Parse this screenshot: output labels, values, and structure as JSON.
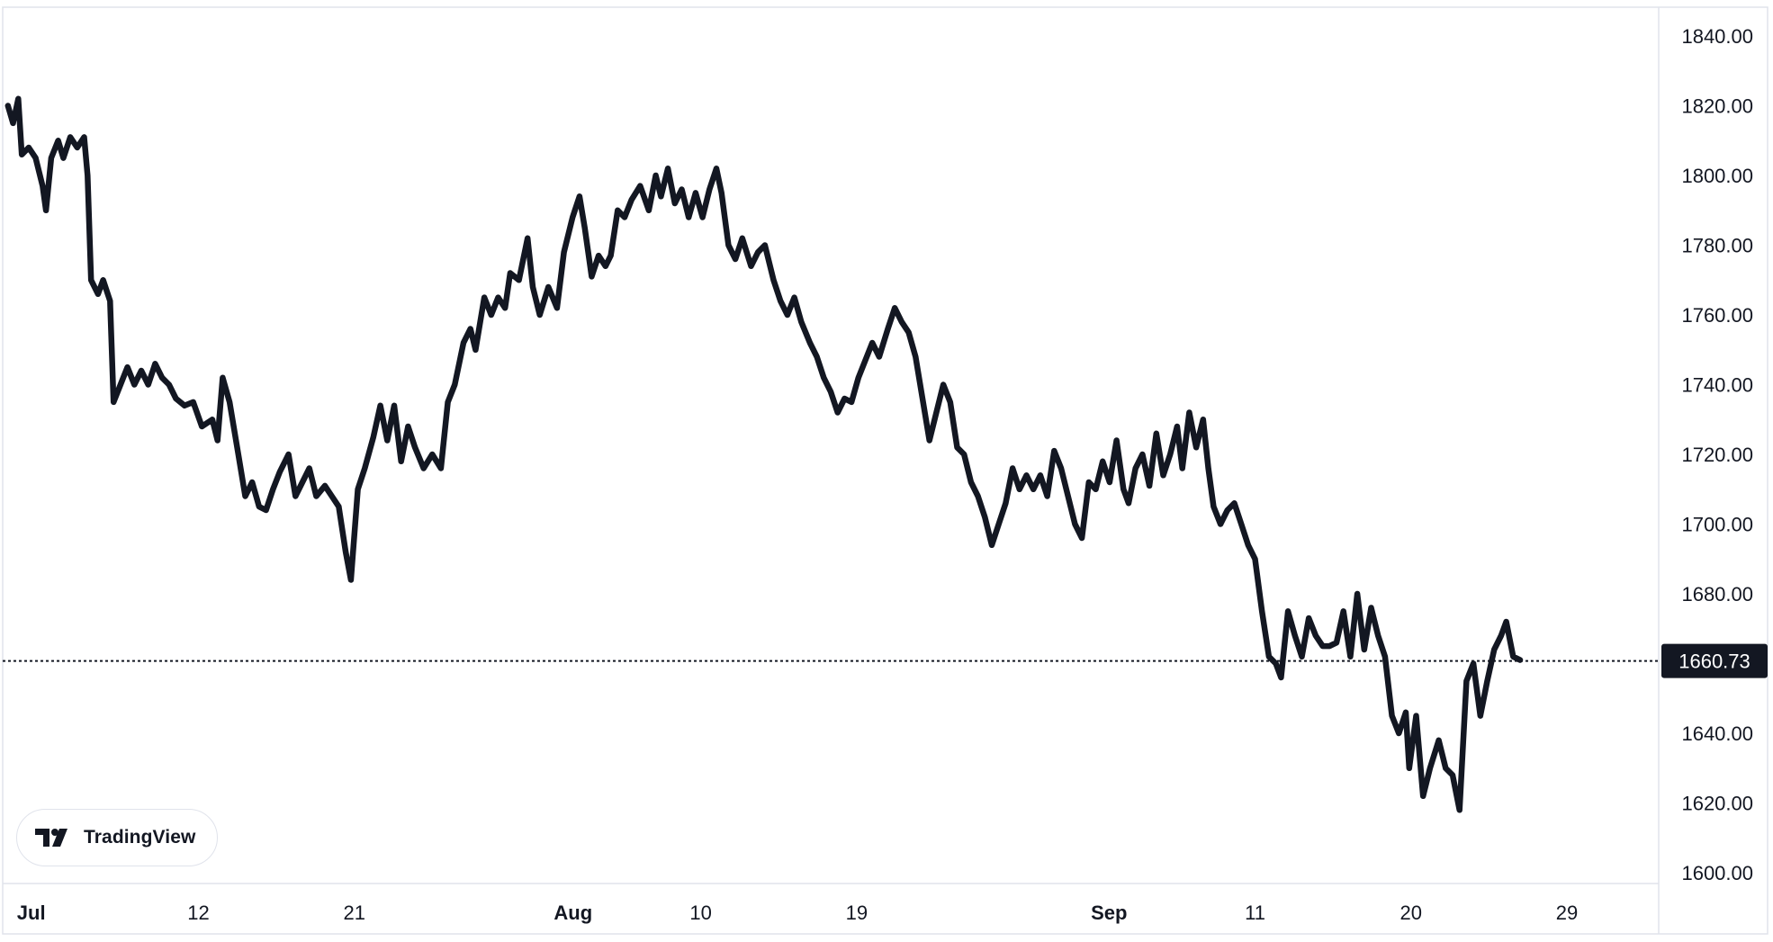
{
  "branding": {
    "logo_text": "TradingView",
    "logo_icon": "tradingview-logo-icon"
  },
  "colors": {
    "line": "#131722",
    "grid_border": "#e0e3eb",
    "price_label_bg": "#131722",
    "price_label_text": "#ffffff",
    "text": "#131722"
  },
  "chart_data": {
    "type": "line",
    "title": "",
    "xlabel": "",
    "ylabel": "",
    "ylim": [
      1600,
      1840
    ],
    "grid": false,
    "y_ticks": [
      "1840.00",
      "1820.00",
      "1800.00",
      "1780.00",
      "1760.00",
      "1740.00",
      "1720.00",
      "1700.00",
      "1680.00",
      "1660.00",
      "1640.00",
      "1620.00",
      "1600.00"
    ],
    "x_ticks": [
      {
        "label": "Jul",
        "day": 0
      },
      {
        "label": "12",
        "day": 11
      },
      {
        "label": "21",
        "day": 20
      },
      {
        "label": "Aug",
        "day": 31
      },
      {
        "label": "10",
        "day": 40
      },
      {
        "label": "19",
        "day": 49
      },
      {
        "label": "Sep",
        "day": 62
      },
      {
        "label": "11",
        "day": 72
      },
      {
        "label": "20",
        "day": 81
      },
      {
        "label": "29",
        "day": 90
      }
    ],
    "x_range": [
      -0.3,
      95.3
    ],
    "current_price": {
      "value": 1660.73,
      "label": "1660.73"
    },
    "series": [
      {
        "values": [
          [
            0,
            1820
          ],
          [
            0.3,
            1815
          ],
          [
            0.6,
            1822
          ],
          [
            0.8,
            1806
          ],
          [
            1.2,
            1808
          ],
          [
            1.6,
            1805
          ],
          [
            2.0,
            1797
          ],
          [
            2.2,
            1790
          ],
          [
            2.5,
            1805
          ],
          [
            2.9,
            1810
          ],
          [
            3.2,
            1805
          ],
          [
            3.6,
            1811
          ],
          [
            4.0,
            1808
          ],
          [
            4.4,
            1811
          ],
          [
            4.6,
            1800
          ],
          [
            4.8,
            1770
          ],
          [
            5.2,
            1766
          ],
          [
            5.5,
            1770
          ],
          [
            5.9,
            1764
          ],
          [
            6.1,
            1735
          ],
          [
            6.5,
            1740
          ],
          [
            6.9,
            1745
          ],
          [
            7.3,
            1740
          ],
          [
            7.7,
            1744
          ],
          [
            8.1,
            1740
          ],
          [
            8.5,
            1746
          ],
          [
            8.9,
            1742
          ],
          [
            9.3,
            1740
          ],
          [
            9.7,
            1736
          ],
          [
            10.2,
            1734
          ],
          [
            10.7,
            1735
          ],
          [
            11.2,
            1728
          ],
          [
            11.8,
            1730
          ],
          [
            12.1,
            1724
          ],
          [
            12.4,
            1742
          ],
          [
            12.8,
            1735
          ],
          [
            13.3,
            1720
          ],
          [
            13.7,
            1708
          ],
          [
            14.1,
            1712
          ],
          [
            14.5,
            1705
          ],
          [
            14.9,
            1704
          ],
          [
            15.3,
            1710
          ],
          [
            15.7,
            1715
          ],
          [
            16.2,
            1720
          ],
          [
            16.6,
            1708
          ],
          [
            17.0,
            1712
          ],
          [
            17.4,
            1716
          ],
          [
            17.8,
            1708
          ],
          [
            18.3,
            1711
          ],
          [
            18.7,
            1708
          ],
          [
            19.1,
            1705
          ],
          [
            19.5,
            1692
          ],
          [
            19.8,
            1684
          ],
          [
            20.2,
            1710
          ],
          [
            20.6,
            1716
          ],
          [
            21.1,
            1725
          ],
          [
            21.5,
            1734
          ],
          [
            21.9,
            1724
          ],
          [
            22.3,
            1734
          ],
          [
            22.7,
            1718
          ],
          [
            23.1,
            1728
          ],
          [
            23.5,
            1722
          ],
          [
            24.0,
            1716
          ],
          [
            24.5,
            1720
          ],
          [
            25.0,
            1716
          ],
          [
            25.4,
            1735
          ],
          [
            25.8,
            1740
          ],
          [
            26.3,
            1752
          ],
          [
            26.7,
            1756
          ],
          [
            27.0,
            1750
          ],
          [
            27.5,
            1765
          ],
          [
            27.9,
            1760
          ],
          [
            28.3,
            1765
          ],
          [
            28.7,
            1762
          ],
          [
            29.0,
            1772
          ],
          [
            29.5,
            1770
          ],
          [
            30.0,
            1782
          ],
          [
            30.3,
            1768
          ],
          [
            30.7,
            1760
          ],
          [
            31.2,
            1768
          ],
          [
            31.7,
            1762
          ],
          [
            32.1,
            1778
          ],
          [
            32.6,
            1788
          ],
          [
            33.0,
            1794
          ],
          [
            33.3,
            1785
          ],
          [
            33.7,
            1771
          ],
          [
            34.1,
            1777
          ],
          [
            34.5,
            1774
          ],
          [
            34.8,
            1777
          ],
          [
            35.2,
            1790
          ],
          [
            35.6,
            1788
          ],
          [
            36.0,
            1793
          ],
          [
            36.5,
            1797
          ],
          [
            37.0,
            1790
          ],
          [
            37.4,
            1800
          ],
          [
            37.7,
            1794
          ],
          [
            38.1,
            1802
          ],
          [
            38.5,
            1792
          ],
          [
            38.9,
            1796
          ],
          [
            39.3,
            1788
          ],
          [
            39.7,
            1795
          ],
          [
            40.1,
            1788
          ],
          [
            40.5,
            1796
          ],
          [
            40.9,
            1802
          ],
          [
            41.2,
            1795
          ],
          [
            41.6,
            1780
          ],
          [
            42.0,
            1776
          ],
          [
            42.4,
            1782
          ],
          [
            42.9,
            1774
          ],
          [
            43.3,
            1778
          ],
          [
            43.7,
            1780
          ],
          [
            44.2,
            1770
          ],
          [
            44.6,
            1764
          ],
          [
            45.0,
            1760
          ],
          [
            45.4,
            1765
          ],
          [
            45.8,
            1758
          ],
          [
            46.3,
            1752
          ],
          [
            46.7,
            1748
          ],
          [
            47.1,
            1742
          ],
          [
            47.5,
            1738
          ],
          [
            47.9,
            1732
          ],
          [
            48.3,
            1736
          ],
          [
            48.7,
            1735
          ],
          [
            49.1,
            1742
          ],
          [
            49.5,
            1747
          ],
          [
            49.9,
            1752
          ],
          [
            50.3,
            1748
          ],
          [
            50.8,
            1756
          ],
          [
            51.2,
            1762
          ],
          [
            51.6,
            1758
          ],
          [
            52.0,
            1755
          ],
          [
            52.4,
            1748
          ],
          [
            52.8,
            1736
          ],
          [
            53.2,
            1724
          ],
          [
            53.6,
            1732
          ],
          [
            54.0,
            1740
          ],
          [
            54.4,
            1735
          ],
          [
            54.8,
            1722
          ],
          [
            55.2,
            1720
          ],
          [
            55.6,
            1712
          ],
          [
            56.0,
            1708
          ],
          [
            56.4,
            1702
          ],
          [
            56.8,
            1694
          ],
          [
            57.2,
            1700
          ],
          [
            57.6,
            1706
          ],
          [
            58.0,
            1716
          ],
          [
            58.4,
            1710
          ],
          [
            58.8,
            1714
          ],
          [
            59.2,
            1710
          ],
          [
            59.6,
            1714
          ],
          [
            60.0,
            1708
          ],
          [
            60.4,
            1721
          ],
          [
            60.8,
            1716
          ],
          [
            61.2,
            1708
          ],
          [
            61.6,
            1700
          ],
          [
            62.0,
            1696
          ],
          [
            62.4,
            1712
          ],
          [
            62.8,
            1710
          ],
          [
            63.2,
            1718
          ],
          [
            63.6,
            1712
          ],
          [
            64.0,
            1724
          ],
          [
            64.4,
            1710
          ],
          [
            64.7,
            1706
          ],
          [
            65.1,
            1716
          ],
          [
            65.5,
            1720
          ],
          [
            65.9,
            1711
          ],
          [
            66.3,
            1726
          ],
          [
            66.7,
            1714
          ],
          [
            67.1,
            1720
          ],
          [
            67.5,
            1728
          ],
          [
            67.8,
            1716
          ],
          [
            68.2,
            1732
          ],
          [
            68.6,
            1722
          ],
          [
            69.0,
            1730
          ],
          [
            69.3,
            1716
          ],
          [
            69.6,
            1705
          ],
          [
            70.0,
            1700
          ],
          [
            70.4,
            1704
          ],
          [
            70.8,
            1706
          ],
          [
            71.2,
            1700
          ],
          [
            71.6,
            1694
          ],
          [
            72.0,
            1690
          ],
          [
            72.4,
            1675
          ],
          [
            72.8,
            1662
          ],
          [
            73.2,
            1660
          ],
          [
            73.5,
            1656
          ],
          [
            73.9,
            1675
          ],
          [
            74.3,
            1668
          ],
          [
            74.7,
            1662
          ],
          [
            75.1,
            1673
          ],
          [
            75.5,
            1668
          ],
          [
            75.9,
            1665
          ],
          [
            76.3,
            1665
          ],
          [
            76.7,
            1666
          ],
          [
            77.1,
            1675
          ],
          [
            77.5,
            1662
          ],
          [
            77.9,
            1680
          ],
          [
            78.3,
            1664
          ],
          [
            78.7,
            1676
          ],
          [
            79.1,
            1668
          ],
          [
            79.5,
            1662
          ],
          [
            79.9,
            1645
          ],
          [
            80.3,
            1640
          ],
          [
            80.7,
            1646
          ],
          [
            80.9,
            1630
          ],
          [
            81.3,
            1645
          ],
          [
            81.7,
            1622
          ],
          [
            82.1,
            1630
          ],
          [
            82.6,
            1638
          ],
          [
            83.0,
            1630
          ],
          [
            83.4,
            1628
          ],
          [
            83.8,
            1618
          ],
          [
            84.2,
            1655
          ],
          [
            84.6,
            1660
          ],
          [
            85.0,
            1645
          ],
          [
            85.4,
            1655
          ],
          [
            85.8,
            1664
          ],
          [
            86.2,
            1668
          ],
          [
            86.5,
            1672
          ],
          [
            86.9,
            1662
          ],
          [
            87.3,
            1661
          ]
        ]
      }
    ]
  }
}
